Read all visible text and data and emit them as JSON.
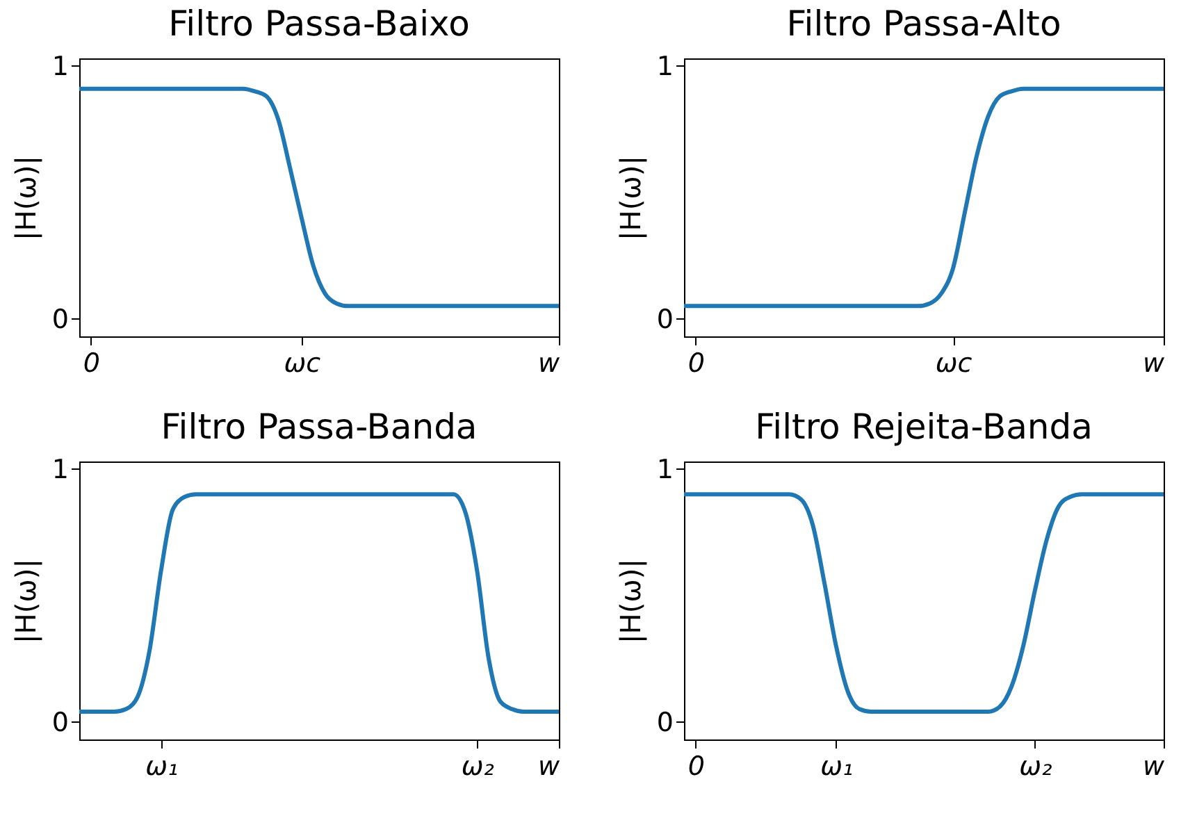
{
  "chart_data": [
    {
      "type": "line",
      "title": "Filtro Passa-Baixo",
      "ylabel": "|H(ω)|",
      "ylim": [
        -0.07,
        1.03
      ],
      "yticks": [
        0,
        1
      ],
      "grid": false,
      "categories": [
        null,
        "0",
        null,
        null,
        null,
        null,
        null,
        null,
        null,
        null,
        null,
        null,
        null,
        null,
        null,
        null,
        null,
        null,
        null,
        "ωc",
        null,
        null,
        null,
        null,
        null,
        null,
        null,
        null,
        null,
        null,
        null,
        null,
        null,
        null,
        null,
        null,
        null,
        null,
        null,
        null,
        null,
        "w"
      ],
      "series": [
        {
          "color": "#1f77b4",
          "values": [
            0.91,
            0.91,
            0.91,
            0.91,
            0.91,
            0.91,
            0.91,
            0.91,
            0.91,
            0.91,
            0.91,
            0.91,
            0.91,
            0.91,
            0.91,
            0.9,
            0.88,
            0.79,
            0.6,
            0.4,
            0.21,
            0.1,
            0.06,
            0.05,
            0.05,
            0.05,
            0.05,
            0.05,
            0.05,
            0.05,
            0.05,
            0.05,
            0.05,
            0.05,
            0.05,
            0.05,
            0.05,
            0.05,
            0.05,
            0.05,
            0.05,
            0.05
          ]
        }
      ]
    },
    {
      "type": "line",
      "title": "Filtro Passa-Alto",
      "ylabel": "|H(ω)|",
      "ylim": [
        -0.07,
        1.03
      ],
      "yticks": [
        0,
        1
      ],
      "grid": false,
      "categories": [
        null,
        "0",
        null,
        null,
        null,
        null,
        null,
        null,
        null,
        null,
        null,
        null,
        null,
        null,
        null,
        null,
        null,
        null,
        null,
        null,
        null,
        null,
        null,
        "ωc",
        null,
        null,
        null,
        null,
        null,
        null,
        null,
        null,
        null,
        null,
        null,
        null,
        null,
        null,
        null,
        null,
        null,
        "w"
      ],
      "series": [
        {
          "color": "#1f77b4",
          "values": [
            0.05,
            0.05,
            0.05,
            0.05,
            0.05,
            0.05,
            0.05,
            0.05,
            0.05,
            0.05,
            0.05,
            0.05,
            0.05,
            0.05,
            0.05,
            0.05,
            0.05,
            0.05,
            0.05,
            0.05,
            0.05,
            0.06,
            0.1,
            0.2,
            0.42,
            0.64,
            0.8,
            0.88,
            0.9,
            0.91,
            0.91,
            0.91,
            0.91,
            0.91,
            0.91,
            0.91,
            0.91,
            0.91,
            0.91,
            0.91,
            0.91,
            0.91
          ]
        }
      ]
    },
    {
      "type": "line",
      "title": "Filtro Passa-Banda",
      "ylabel": "|H(ω)|",
      "ylim": [
        -0.07,
        1.03
      ],
      "yticks": [
        0,
        1
      ],
      "grid": false,
      "categories": [
        null,
        null,
        null,
        null,
        null,
        null,
        null,
        "ω₁",
        null,
        null,
        null,
        null,
        null,
        null,
        null,
        null,
        null,
        null,
        null,
        null,
        null,
        null,
        null,
        null,
        null,
        null,
        null,
        null,
        null,
        null,
        null,
        null,
        null,
        null,
        "ω₂",
        null,
        null,
        null,
        null,
        null,
        null,
        "w"
      ],
      "series": [
        {
          "color": "#1f77b4",
          "values": [
            0.04,
            0.04,
            0.04,
            0.04,
            0.05,
            0.1,
            0.28,
            0.6,
            0.84,
            0.89,
            0.9,
            0.9,
            0.9,
            0.9,
            0.9,
            0.9,
            0.9,
            0.9,
            0.9,
            0.9,
            0.9,
            0.9,
            0.9,
            0.9,
            0.9,
            0.9,
            0.9,
            0.9,
            0.9,
            0.9,
            0.9,
            0.9,
            0.9,
            0.83,
            0.6,
            0.25,
            0.08,
            0.05,
            0.04,
            0.04,
            0.04,
            0.04
          ]
        }
      ]
    },
    {
      "type": "line",
      "title": "Filtro Rejeita-Banda",
      "ylabel": "|H(ω)|",
      "ylim": [
        -0.07,
        1.03
      ],
      "yticks": [
        0,
        1
      ],
      "grid": false,
      "categories": [
        null,
        "0",
        null,
        null,
        null,
        null,
        null,
        null,
        null,
        null,
        null,
        null,
        null,
        "ω₁",
        null,
        null,
        null,
        null,
        null,
        null,
        null,
        null,
        null,
        null,
        null,
        null,
        null,
        null,
        null,
        null,
        "ω₂",
        null,
        null,
        null,
        null,
        null,
        null,
        null,
        null,
        null,
        null,
        "w"
      ],
      "series": [
        {
          "color": "#1f77b4",
          "values": [
            0.9,
            0.9,
            0.9,
            0.9,
            0.9,
            0.9,
            0.9,
            0.9,
            0.9,
            0.9,
            0.88,
            0.78,
            0.55,
            0.3,
            0.12,
            0.05,
            0.04,
            0.04,
            0.04,
            0.04,
            0.04,
            0.04,
            0.04,
            0.04,
            0.04,
            0.04,
            0.04,
            0.06,
            0.14,
            0.3,
            0.52,
            0.72,
            0.85,
            0.89,
            0.9,
            0.9,
            0.9,
            0.9,
            0.9,
            0.9,
            0.9,
            0.9
          ]
        }
      ]
    }
  ]
}
